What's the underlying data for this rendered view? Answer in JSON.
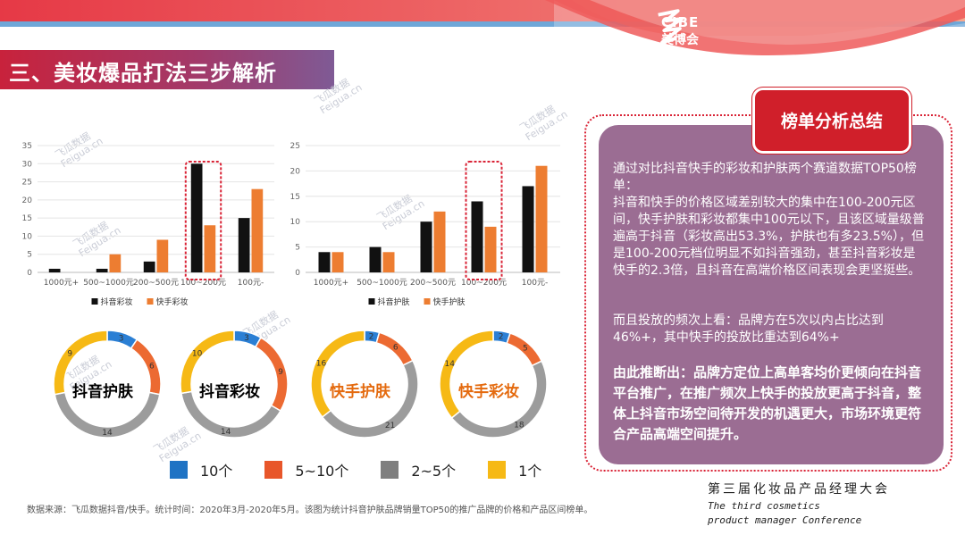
{
  "page": {
    "title": "三、美妆爆品打法三步解析",
    "logo_en": "CIBE",
    "logo_cn": "美博会"
  },
  "watermark": {
    "cn": "飞瓜数据",
    "en": "Feigua.cn"
  },
  "chart_data": [
    {
      "type": "bar",
      "categories": [
        "1000元+",
        "500~1000元",
        "200~500元",
        "100~200元",
        "100元-"
      ],
      "series": [
        {
          "name": "抖音彩妆",
          "values": [
            1,
            1,
            3,
            30,
            15
          ],
          "color": "#111111"
        },
        {
          "name": "快手彩妆",
          "values": [
            0,
            5,
            9,
            13,
            23
          ],
          "color": "#ed7d31"
        }
      ],
      "ylim": [
        0,
        35
      ],
      "yticks": [
        0,
        5,
        10,
        15,
        20,
        25,
        30,
        35
      ],
      "highlight_category": "100~200元"
    },
    {
      "type": "bar",
      "categories": [
        "1000元+",
        "500~1000元",
        "200~500元",
        "100~200元",
        "100元-"
      ],
      "series": [
        {
          "name": "抖音护肤",
          "values": [
            4,
            5,
            10,
            14,
            17
          ],
          "color": "#111111"
        },
        {
          "name": "快手护肤",
          "values": [
            4,
            4,
            12,
            9,
            21
          ],
          "color": "#ed7d31"
        }
      ],
      "ylim": [
        0,
        25
      ],
      "yticks": [
        0,
        5,
        10,
        15,
        20,
        25
      ],
      "highlight_category": "100~200元"
    },
    {
      "type": "pie",
      "title": "抖音护肤",
      "title_color": "#111111",
      "labels": [
        "10个",
        "5~10个",
        "2~5个",
        "1个"
      ],
      "values": [
        3,
        6,
        14,
        9
      ]
    },
    {
      "type": "pie",
      "title": "抖音彩妆",
      "title_color": "#111111",
      "labels": [
        "10个",
        "5~10个",
        "2~5个",
        "1个"
      ],
      "values": [
        3,
        9,
        14,
        10
      ]
    },
    {
      "type": "pie",
      "title": "快手护肤",
      "title_color": "#e46a0e",
      "labels": [
        "10个",
        "5~10个",
        "2~5个",
        "1个"
      ],
      "values": [
        2,
        6,
        21,
        16
      ]
    },
    {
      "type": "pie",
      "title": "快手彩妆",
      "title_color": "#e46a0e",
      "labels": [
        "10个",
        "5~10个",
        "2~5个",
        "1个"
      ],
      "values": [
        2,
        5,
        18,
        14
      ]
    }
  ],
  "donut_colors": [
    "#2b7fd4",
    "#ec6a32",
    "#9c9c9c",
    "#f6b915"
  ],
  "legend": [
    {
      "label": "10个",
      "color": "#1f73c4"
    },
    {
      "label": "5~10个",
      "color": "#e8562a"
    },
    {
      "label": "2~5个",
      "color": "#7f7f7f"
    },
    {
      "label": "1个",
      "color": "#f6b915"
    }
  ],
  "source": "数据来源：飞瓜数据抖音/快手。统计时间：2020年3月-2020年5月。该图为统计抖音护肤品牌销量TOP50的推广品牌的价格和产品区间榜单。",
  "summary": {
    "heading": "榜单分析总结",
    "p1": "通过对比抖音快手的彩妆和护肤两个赛道数据TOP50榜单：",
    "p2": "抖音和快手的价格区域差别较大的集中在100-200元区间，快手护肤和彩妆都集中100元以下，且该区域量级普遍高于抖音（彩妆高出53.3%，护肤也有多23.5%），但是100-200元档位明显不如抖音强劲，甚至抖音彩妆是快手的2.3倍，且抖音在高端价格区间表现会更坚挺些。",
    "p3": "而且投放的频次上看：品牌方在5次以内占比达到46%+，其中快手的投放比重达到64%+",
    "p4": "由此推断出：品牌方定位上高单客均价更倾向在抖音平台推广，在推广频次上快手的投放更高于抖音，整体上抖音市场空间待开发的机遇更大，市场环境更符合产品高端空间提升。"
  },
  "footer": {
    "cn": "第三届化妆品产品经理大会",
    "en1": "The third cosmetics",
    "en2": "product manager Conference"
  }
}
